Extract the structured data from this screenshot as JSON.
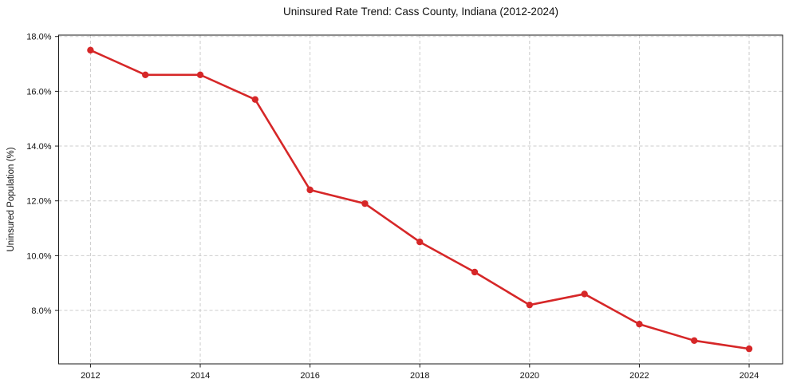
{
  "chart_data": {
    "type": "line",
    "title": "Uninsured Rate Trend: Cass County, Indiana (2012-2024)",
    "xlabel": "",
    "ylabel": "Uninsured Population (%)",
    "x": [
      2012,
      2013,
      2014,
      2015,
      2016,
      2017,
      2018,
      2019,
      2020,
      2021,
      2022,
      2023,
      2024
    ],
    "values": [
      17.5,
      16.6,
      16.6,
      15.7,
      12.4,
      11.9,
      10.5,
      9.4,
      8.2,
      8.6,
      7.5,
      6.9,
      6.6
    ],
    "x_tick_values": [
      2012,
      2014,
      2016,
      2018,
      2020,
      2022,
      2024
    ],
    "x_tick_labels": [
      "2012",
      "2014",
      "2016",
      "2018",
      "2020",
      "2022",
      "2024"
    ],
    "y_tick_values": [
      8,
      10,
      12,
      14,
      16,
      18
    ],
    "y_tick_labels": [
      "8.0%",
      "10.0%",
      "12.0%",
      "14.0%",
      "16.0%",
      "18.0%"
    ],
    "xlim": [
      2011.42,
      2024.61
    ],
    "ylim": [
      6.05,
      18.05
    ],
    "grid": true,
    "legend": "none",
    "colors": {
      "line": "#d62728",
      "marker": "#d62728",
      "grid": "#cccccc",
      "axis": "#1a1a1a",
      "text": "#111111",
      "background": "#ffffff"
    }
  }
}
